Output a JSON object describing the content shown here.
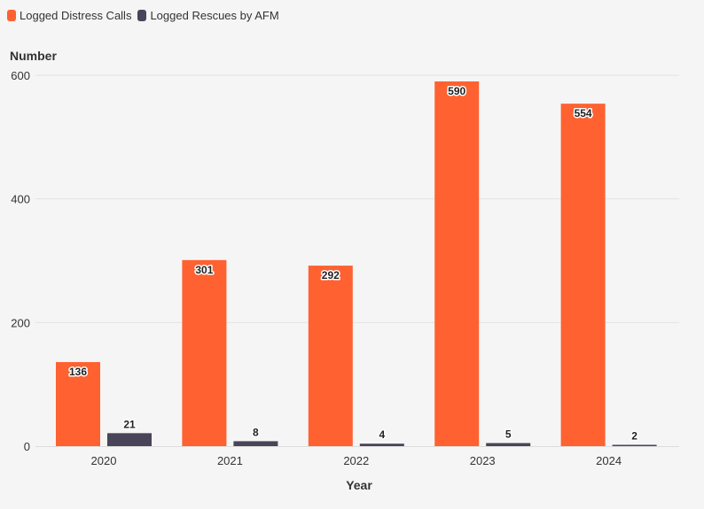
{
  "chart_data": {
    "type": "bar",
    "title": "",
    "xlabel": "Year",
    "ylabel": "Number",
    "ylim": [
      0,
      600
    ],
    "yticks": [
      0,
      200,
      400,
      600
    ],
    "grid": true,
    "legend_placement": "top-left",
    "categories": [
      "2020",
      "2021",
      "2022",
      "2023",
      "2024"
    ],
    "series": [
      {
        "name": "Logged Distress Calls",
        "color": "#ff6130",
        "values": [
          136,
          301,
          292,
          590,
          554
        ],
        "labels": [
          "136",
          "301",
          "292",
          "590",
          "554"
        ],
        "label_position": "inside-top"
      },
      {
        "name": "Logged Rescues by AFM",
        "color": "#4a4459",
        "values": [
          21,
          8,
          4,
          5,
          2
        ],
        "labels": [
          "21",
          "8",
          "4",
          "5",
          "2"
        ],
        "label_position": "above"
      }
    ]
  }
}
